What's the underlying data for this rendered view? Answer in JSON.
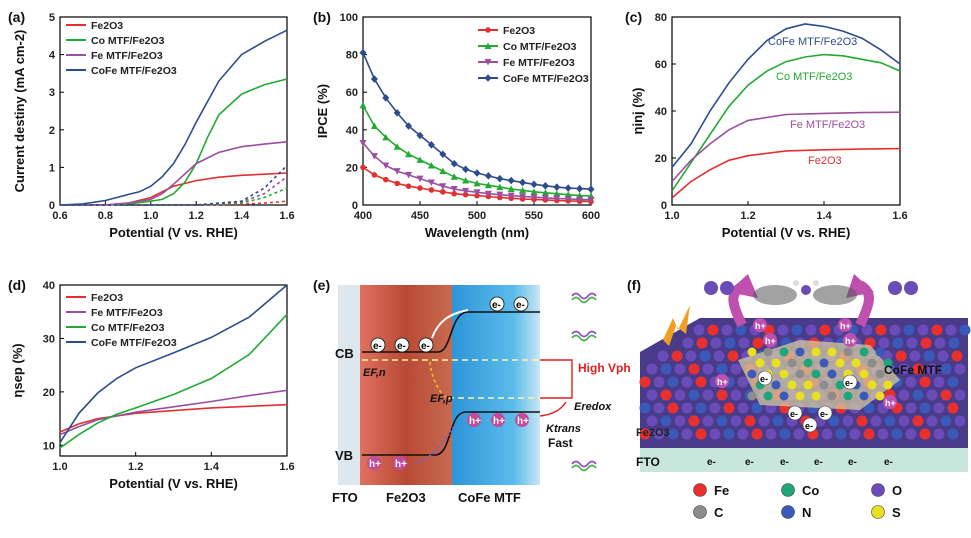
{
  "chart_data": [
    {
      "id": "a",
      "panel_label": "(a)",
      "type": "line",
      "xlabel": "Potential (V vs. RHE)",
      "ylabel": "Current destiny (mA cm-2)",
      "xlim": [
        0.6,
        1.6
      ],
      "ylim": [
        0,
        5
      ],
      "xticks": [
        "0.6",
        "0.8",
        "1.0",
        "1.2",
        "1.4",
        "1.6"
      ],
      "yticks": [
        "0",
        "1",
        "2",
        "3",
        "4",
        "5"
      ],
      "legend_position": "top-left",
      "series": [
        {
          "name": "Fe2O3",
          "color": "#e03030",
          "x": [
            0.6,
            0.8,
            0.9,
            1.0,
            1.05,
            1.1,
            1.2,
            1.3,
            1.4,
            1.5,
            1.6
          ],
          "y": [
            0,
            0,
            0.05,
            0.2,
            0.35,
            0.5,
            0.65,
            0.74,
            0.79,
            0.82,
            0.85
          ]
        },
        {
          "name": "Co MTF/Fe2O3",
          "color": "#22aa33",
          "x": [
            0.6,
            0.8,
            0.9,
            1.0,
            1.05,
            1.1,
            1.15,
            1.2,
            1.25,
            1.3,
            1.4,
            1.5,
            1.6
          ],
          "y": [
            0,
            0,
            0.03,
            0.1,
            0.15,
            0.3,
            0.6,
            1.1,
            1.8,
            2.4,
            2.95,
            3.2,
            3.35
          ]
        },
        {
          "name": "Fe MTF/Fe2O3",
          "color": "#9a4fa0",
          "x": [
            0.6,
            0.8,
            0.9,
            1.0,
            1.05,
            1.1,
            1.2,
            1.3,
            1.4,
            1.5,
            1.6
          ],
          "y": [
            0,
            0,
            0.05,
            0.15,
            0.3,
            0.55,
            1.1,
            1.4,
            1.55,
            1.62,
            1.68
          ]
        },
        {
          "name": "CoFe MTF/Fe2O3",
          "color": "#2d4c8c",
          "x": [
            0.6,
            0.7,
            0.8,
            0.85,
            0.9,
            0.95,
            1.0,
            1.05,
            1.1,
            1.15,
            1.2,
            1.3,
            1.4,
            1.5,
            1.6
          ],
          "y": [
            0,
            0.03,
            0.12,
            0.2,
            0.28,
            0.35,
            0.5,
            0.75,
            1.1,
            1.6,
            2.2,
            3.3,
            4.0,
            4.35,
            4.65
          ]
        },
        {
          "name": "",
          "color": "#e03030",
          "dashed": true,
          "x": [
            0.6,
            1.2,
            1.4,
            1.5,
            1.6
          ],
          "y": [
            0,
            0,
            0.02,
            0.05,
            0.1
          ]
        },
        {
          "name": "",
          "color": "#22aa33",
          "dashed": true,
          "x": [
            0.6,
            1.2,
            1.4,
            1.5,
            1.6
          ],
          "y": [
            0,
            0,
            0.05,
            0.2,
            0.45
          ]
        },
        {
          "name": "",
          "color": "#9a4fa0",
          "dashed": true,
          "x": [
            0.6,
            1.2,
            1.4,
            1.5,
            1.6
          ],
          "y": [
            0,
            0,
            0.08,
            0.3,
            0.75
          ]
        },
        {
          "name": "",
          "color": "#2d4c8c",
          "dashed": true,
          "x": [
            0.6,
            1.2,
            1.4,
            1.5,
            1.6
          ],
          "y": [
            0,
            0,
            0.1,
            0.45,
            1.05
          ]
        }
      ]
    },
    {
      "id": "b",
      "panel_label": "(b)",
      "type": "line",
      "xlabel": "Wavelength (nm)",
      "ylabel": "IPCE (%)",
      "xlim": [
        400,
        600
      ],
      "ylim": [
        0,
        100
      ],
      "xticks": [
        "400",
        "450",
        "500",
        "550",
        "600"
      ],
      "yticks": [
        "0",
        "20",
        "40",
        "60",
        "80",
        "100"
      ],
      "legend_position": "top-right",
      "series": [
        {
          "name": "Fe2O3",
          "color": "#e03030",
          "marker": "circle",
          "x": [
            400,
            410,
            420,
            430,
            440,
            450,
            460,
            470,
            480,
            490,
            500,
            510,
            520,
            530,
            540,
            550,
            560,
            570,
            580,
            590,
            600
          ],
          "y": [
            20,
            16,
            13.5,
            11.5,
            10,
            9,
            8,
            7,
            6,
            5.5,
            5,
            4.5,
            4,
            3.6,
            3.2,
            3,
            2.7,
            2.4,
            2.2,
            2,
            1.8
          ]
        },
        {
          "name": "Co MTF/Fe2O3",
          "color": "#22aa33",
          "marker": "triangle",
          "x": [
            400,
            410,
            420,
            430,
            440,
            450,
            460,
            470,
            480,
            490,
            500,
            510,
            520,
            530,
            540,
            550,
            560,
            570,
            580,
            590,
            600
          ],
          "y": [
            53,
            42,
            36,
            31,
            27,
            24,
            21,
            18,
            15,
            13,
            11.5,
            10.5,
            9.5,
            8.5,
            7.8,
            7,
            6.5,
            6,
            5.5,
            5,
            4.8
          ]
        },
        {
          "name": "Fe MTF/Fe2O3",
          "color": "#9a4fa0",
          "marker": "triangle-down",
          "x": [
            400,
            410,
            420,
            430,
            440,
            450,
            460,
            470,
            480,
            490,
            500,
            510,
            520,
            530,
            540,
            550,
            560,
            570,
            580,
            590,
            600
          ],
          "y": [
            33,
            26,
            21,
            18,
            16,
            14,
            12,
            10,
            8.5,
            7.5,
            6.8,
            6,
            5.5,
            5,
            4.6,
            4.2,
            3.8,
            3.5,
            3.2,
            3,
            2.8
          ]
        },
        {
          "name": "CoFe MTF/Fe2O3",
          "color": "#2d4c8c",
          "marker": "diamond",
          "x": [
            400,
            410,
            420,
            430,
            440,
            450,
            460,
            470,
            480,
            490,
            500,
            510,
            520,
            530,
            540,
            550,
            560,
            570,
            580,
            590,
            600
          ],
          "y": [
            81,
            67,
            57,
            49,
            42,
            37,
            32,
            27,
            22,
            19,
            17,
            15.5,
            14,
            13,
            12,
            11,
            10.2,
            9.5,
            9,
            8.7,
            8.4
          ]
        }
      ]
    },
    {
      "id": "c",
      "panel_label": "(c)",
      "type": "line",
      "xlabel": "Potential (V vs. RHE)",
      "ylabel": "ηinj (%)",
      "xlim": [
        1.0,
        1.6
      ],
      "ylim": [
        0,
        80
      ],
      "xticks": [
        "1.0",
        "1.2",
        "1.4",
        "1.6"
      ],
      "yticks": [
        "0",
        "20",
        "40",
        "60",
        "80"
      ],
      "legend_position": "inline",
      "series": [
        {
          "name": "Fe2O3",
          "color": "#e03030",
          "x": [
            1.0,
            1.05,
            1.1,
            1.15,
            1.2,
            1.3,
            1.4,
            1.5,
            1.6
          ],
          "y": [
            3,
            10,
            15,
            19,
            21,
            23,
            23.5,
            23.8,
            24
          ]
        },
        {
          "name": "Co MTF/Fe2O3",
          "color": "#22aa33",
          "x": [
            1.0,
            1.05,
            1.1,
            1.15,
            1.2,
            1.25,
            1.3,
            1.35,
            1.4,
            1.45,
            1.5,
            1.55,
            1.6
          ],
          "y": [
            6,
            18,
            30,
            42,
            51,
            57,
            61,
            63,
            64,
            63.5,
            62,
            60.5,
            57
          ]
        },
        {
          "name": "Fe MTF/Fe2O3",
          "color": "#9a4fa0",
          "x": [
            1.0,
            1.05,
            1.1,
            1.15,
            1.2,
            1.3,
            1.4,
            1.5,
            1.6
          ],
          "y": [
            10,
            19,
            26,
            32,
            36,
            38.5,
            39,
            39.3,
            39.5
          ]
        },
        {
          "name": "CoFe MTF/Fe2O3",
          "color": "#2d4c8c",
          "x": [
            1.0,
            1.05,
            1.1,
            1.15,
            1.2,
            1.25,
            1.3,
            1.35,
            1.4,
            1.45,
            1.5,
            1.55,
            1.6
          ],
          "y": [
            16,
            26,
            40,
            52,
            62,
            70,
            75,
            77,
            76,
            74,
            71,
            66,
            60
          ]
        }
      ]
    },
    {
      "id": "d",
      "panel_label": "(d)",
      "type": "line",
      "xlabel": "Potential (V vs. RHE)",
      "ylabel": "ηsep (%)",
      "xlim": [
        1.0,
        1.6
      ],
      "ylim": [
        8,
        40
      ],
      "xticks": [
        "1.0",
        "1.2",
        "1.4",
        "1.6"
      ],
      "yticks": [
        "10",
        "20",
        "30",
        "40"
      ],
      "legend_position": "top-left",
      "series": [
        {
          "name": "Fe2O3",
          "color": "#e03030",
          "x": [
            1.0,
            1.05,
            1.1,
            1.2,
            1.3,
            1.4,
            1.5,
            1.6
          ],
          "y": [
            12.5,
            14,
            15,
            16,
            16.5,
            17,
            17.3,
            17.6
          ]
        },
        {
          "name": "Fe MTF/Fe2O3",
          "color": "#9a4fa0",
          "x": [
            1.0,
            1.05,
            1.1,
            1.2,
            1.3,
            1.4,
            1.5,
            1.6
          ],
          "y": [
            12,
            13.5,
            14.8,
            16.2,
            17.2,
            18.2,
            19.3,
            20.3
          ]
        },
        {
          "name": "Co MTF/Fe2O3",
          "color": "#22aa33",
          "x": [
            1.0,
            1.05,
            1.1,
            1.15,
            1.2,
            1.3,
            1.4,
            1.5,
            1.6
          ],
          "y": [
            9.5,
            12,
            14.2,
            15.8,
            17,
            19.5,
            22.5,
            27,
            34.5
          ]
        },
        {
          "name": "CoFe MTF/Fe2O3",
          "color": "#2d4c8c",
          "x": [
            1.0,
            1.05,
            1.1,
            1.15,
            1.2,
            1.3,
            1.4,
            1.5,
            1.6
          ],
          "y": [
            10.5,
            16,
            19.8,
            22.5,
            24.5,
            27.3,
            30.2,
            34,
            40
          ]
        }
      ]
    }
  ],
  "diagram_e": {
    "panel_label": "(e)",
    "cb_label": "CB",
    "vb_label": "VB",
    "efn_label": "EF,n",
    "efp_label": "EF,p",
    "high_v_label": "High Vph",
    "eredox_label": "Eredox",
    "ktrans_label": "Ktrans",
    "fast_label": "Fast",
    "fto_label": "FTO",
    "fe2o3_label": "Fe2O3",
    "mtf_label": "CoFe MTF",
    "electron": "e-",
    "hole": "h+",
    "colors": {
      "fe2o3": "#c0583f",
      "mtf": "#3aa7e0",
      "fto": "#dde8ee",
      "red": "#e02020"
    }
  },
  "diagram_f": {
    "panel_label": "(f)",
    "cofe_label": "CoFe MTF",
    "fe2o3_label": "Fe2O3",
    "fto_label": "FTO",
    "electron": "e-",
    "hole": "h+",
    "atoms": [
      {
        "symbol": "Fe",
        "color": "#e8302e"
      },
      {
        "symbol": "Co",
        "color": "#1fa57a"
      },
      {
        "symbol": "O",
        "color": "#6a4cb8"
      },
      {
        "symbol": "C",
        "color": "#8c8c8c"
      },
      {
        "symbol": "N",
        "color": "#3a59b8"
      },
      {
        "symbol": "S",
        "color": "#e8e020"
      }
    ]
  }
}
